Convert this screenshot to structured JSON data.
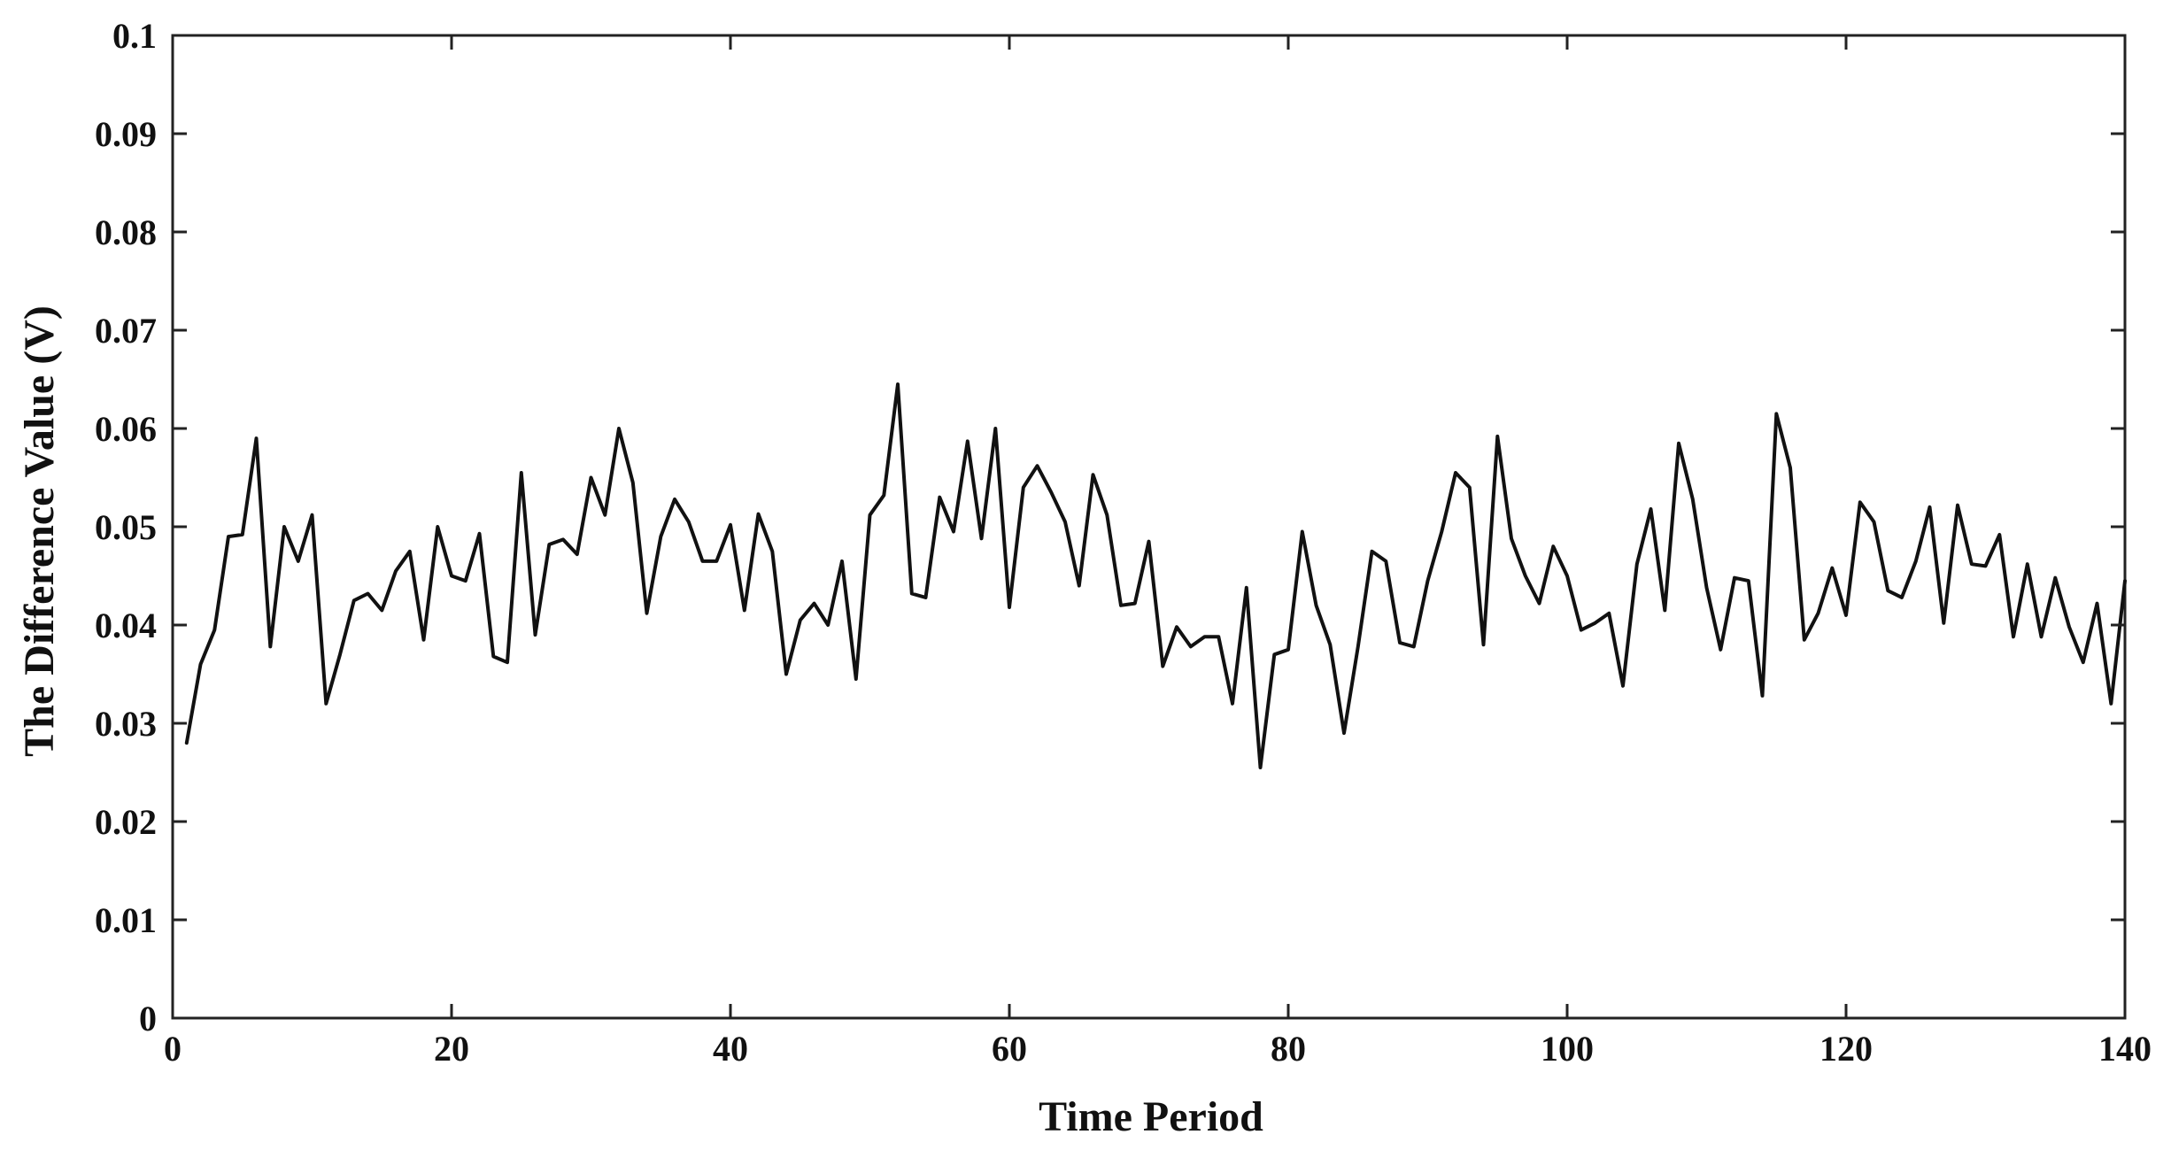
{
  "chart_data": {
    "type": "line",
    "title": "",
    "xlabel": "Time Period",
    "ylabel": "The Difference Value (V)",
    "xlim": [
      0,
      140
    ],
    "ylim": [
      0,
      0.1
    ],
    "xticks": [
      0,
      20,
      40,
      60,
      80,
      100,
      120,
      140
    ],
    "yticks": [
      0,
      0.01,
      0.02,
      0.03,
      0.04,
      0.05,
      0.06,
      0.07,
      0.08,
      0.09,
      0.1
    ],
    "xtick_labels": [
      "0",
      "20",
      "40",
      "60",
      "80",
      "100",
      "120",
      "140"
    ],
    "ytick_labels": [
      "0",
      "0.01",
      "0.02",
      "0.03",
      "0.04",
      "0.05",
      "0.06",
      "0.07",
      "0.08",
      "0.09",
      "0.1"
    ],
    "grid": false,
    "line_color": "#111111",
    "series": [
      {
        "x": [
          1,
          2,
          3,
          4,
          5,
          6,
          7,
          8,
          9,
          10,
          11,
          12,
          13,
          14,
          15,
          16,
          17,
          18,
          19,
          20,
          21,
          22,
          23,
          24,
          25,
          26,
          27,
          28,
          29,
          30,
          31,
          32,
          33,
          34,
          35,
          36,
          37,
          38,
          39,
          40,
          41,
          42,
          43,
          44,
          45,
          46,
          47,
          48,
          49,
          50,
          51,
          52,
          53,
          54,
          55,
          56,
          57,
          58,
          59,
          60,
          61,
          62,
          63,
          64,
          65,
          66,
          67,
          68,
          69,
          70,
          71,
          72,
          73,
          74,
          75,
          76,
          77,
          78,
          79,
          80,
          81,
          82,
          83,
          84,
          85,
          86,
          87,
          88,
          89,
          90,
          91,
          92,
          93,
          94,
          95,
          96,
          97,
          98,
          99,
          100,
          101,
          102,
          103,
          104,
          105,
          106,
          107,
          108,
          109,
          110,
          111,
          112,
          113,
          114,
          115,
          116,
          117,
          118,
          119,
          120,
          121,
          122,
          123,
          124,
          125,
          126,
          127,
          128,
          129,
          130,
          131,
          132,
          133,
          134,
          135,
          136,
          137,
          138,
          139,
          140
        ],
        "values": [
          0.028,
          0.036,
          0.0395,
          0.049,
          0.0492,
          0.059,
          0.0378,
          0.05,
          0.0465,
          0.0512,
          0.032,
          0.037,
          0.0425,
          0.0432,
          0.0415,
          0.0455,
          0.0475,
          0.0385,
          0.05,
          0.045,
          0.0445,
          0.0493,
          0.0368,
          0.0362,
          0.0555,
          0.039,
          0.0482,
          0.0487,
          0.0472,
          0.055,
          0.0512,
          0.06,
          0.0545,
          0.0412,
          0.049,
          0.0528,
          0.0505,
          0.0465,
          0.0465,
          0.0502,
          0.0415,
          0.0513,
          0.0475,
          0.035,
          0.0405,
          0.0422,
          0.04,
          0.0465,
          0.0345,
          0.0512,
          0.0532,
          0.0645,
          0.0432,
          0.0428,
          0.053,
          0.0495,
          0.0587,
          0.0488,
          0.06,
          0.0418,
          0.054,
          0.0562,
          0.0535,
          0.0505,
          0.044,
          0.0553,
          0.0512,
          0.042,
          0.0422,
          0.0485,
          0.0358,
          0.0398,
          0.0378,
          0.0388,
          0.0388,
          0.032,
          0.0438,
          0.0255,
          0.037,
          0.0375,
          0.0495,
          0.042,
          0.038,
          0.029,
          0.0378,
          0.0475,
          0.0465,
          0.0382,
          0.0378,
          0.0445,
          0.0495,
          0.0555,
          0.054,
          0.038,
          0.0592,
          0.0488,
          0.045,
          0.0422,
          0.048,
          0.045,
          0.0395,
          0.0402,
          0.0412,
          0.0338,
          0.0462,
          0.0518,
          0.0415,
          0.0585,
          0.0528,
          0.0438,
          0.0375,
          0.0448,
          0.0445,
          0.0328,
          0.0615,
          0.056,
          0.0385,
          0.0412,
          0.0458,
          0.041,
          0.0525,
          0.0505,
          0.0435,
          0.0428,
          0.0465,
          0.052,
          0.0402,
          0.0522,
          0.0462,
          0.046,
          0.0492,
          0.0388,
          0.0462,
          0.0388,
          0.0448,
          0.0398,
          0.0362,
          0.0422,
          0.032,
          0.0445
        ]
      }
    ]
  }
}
